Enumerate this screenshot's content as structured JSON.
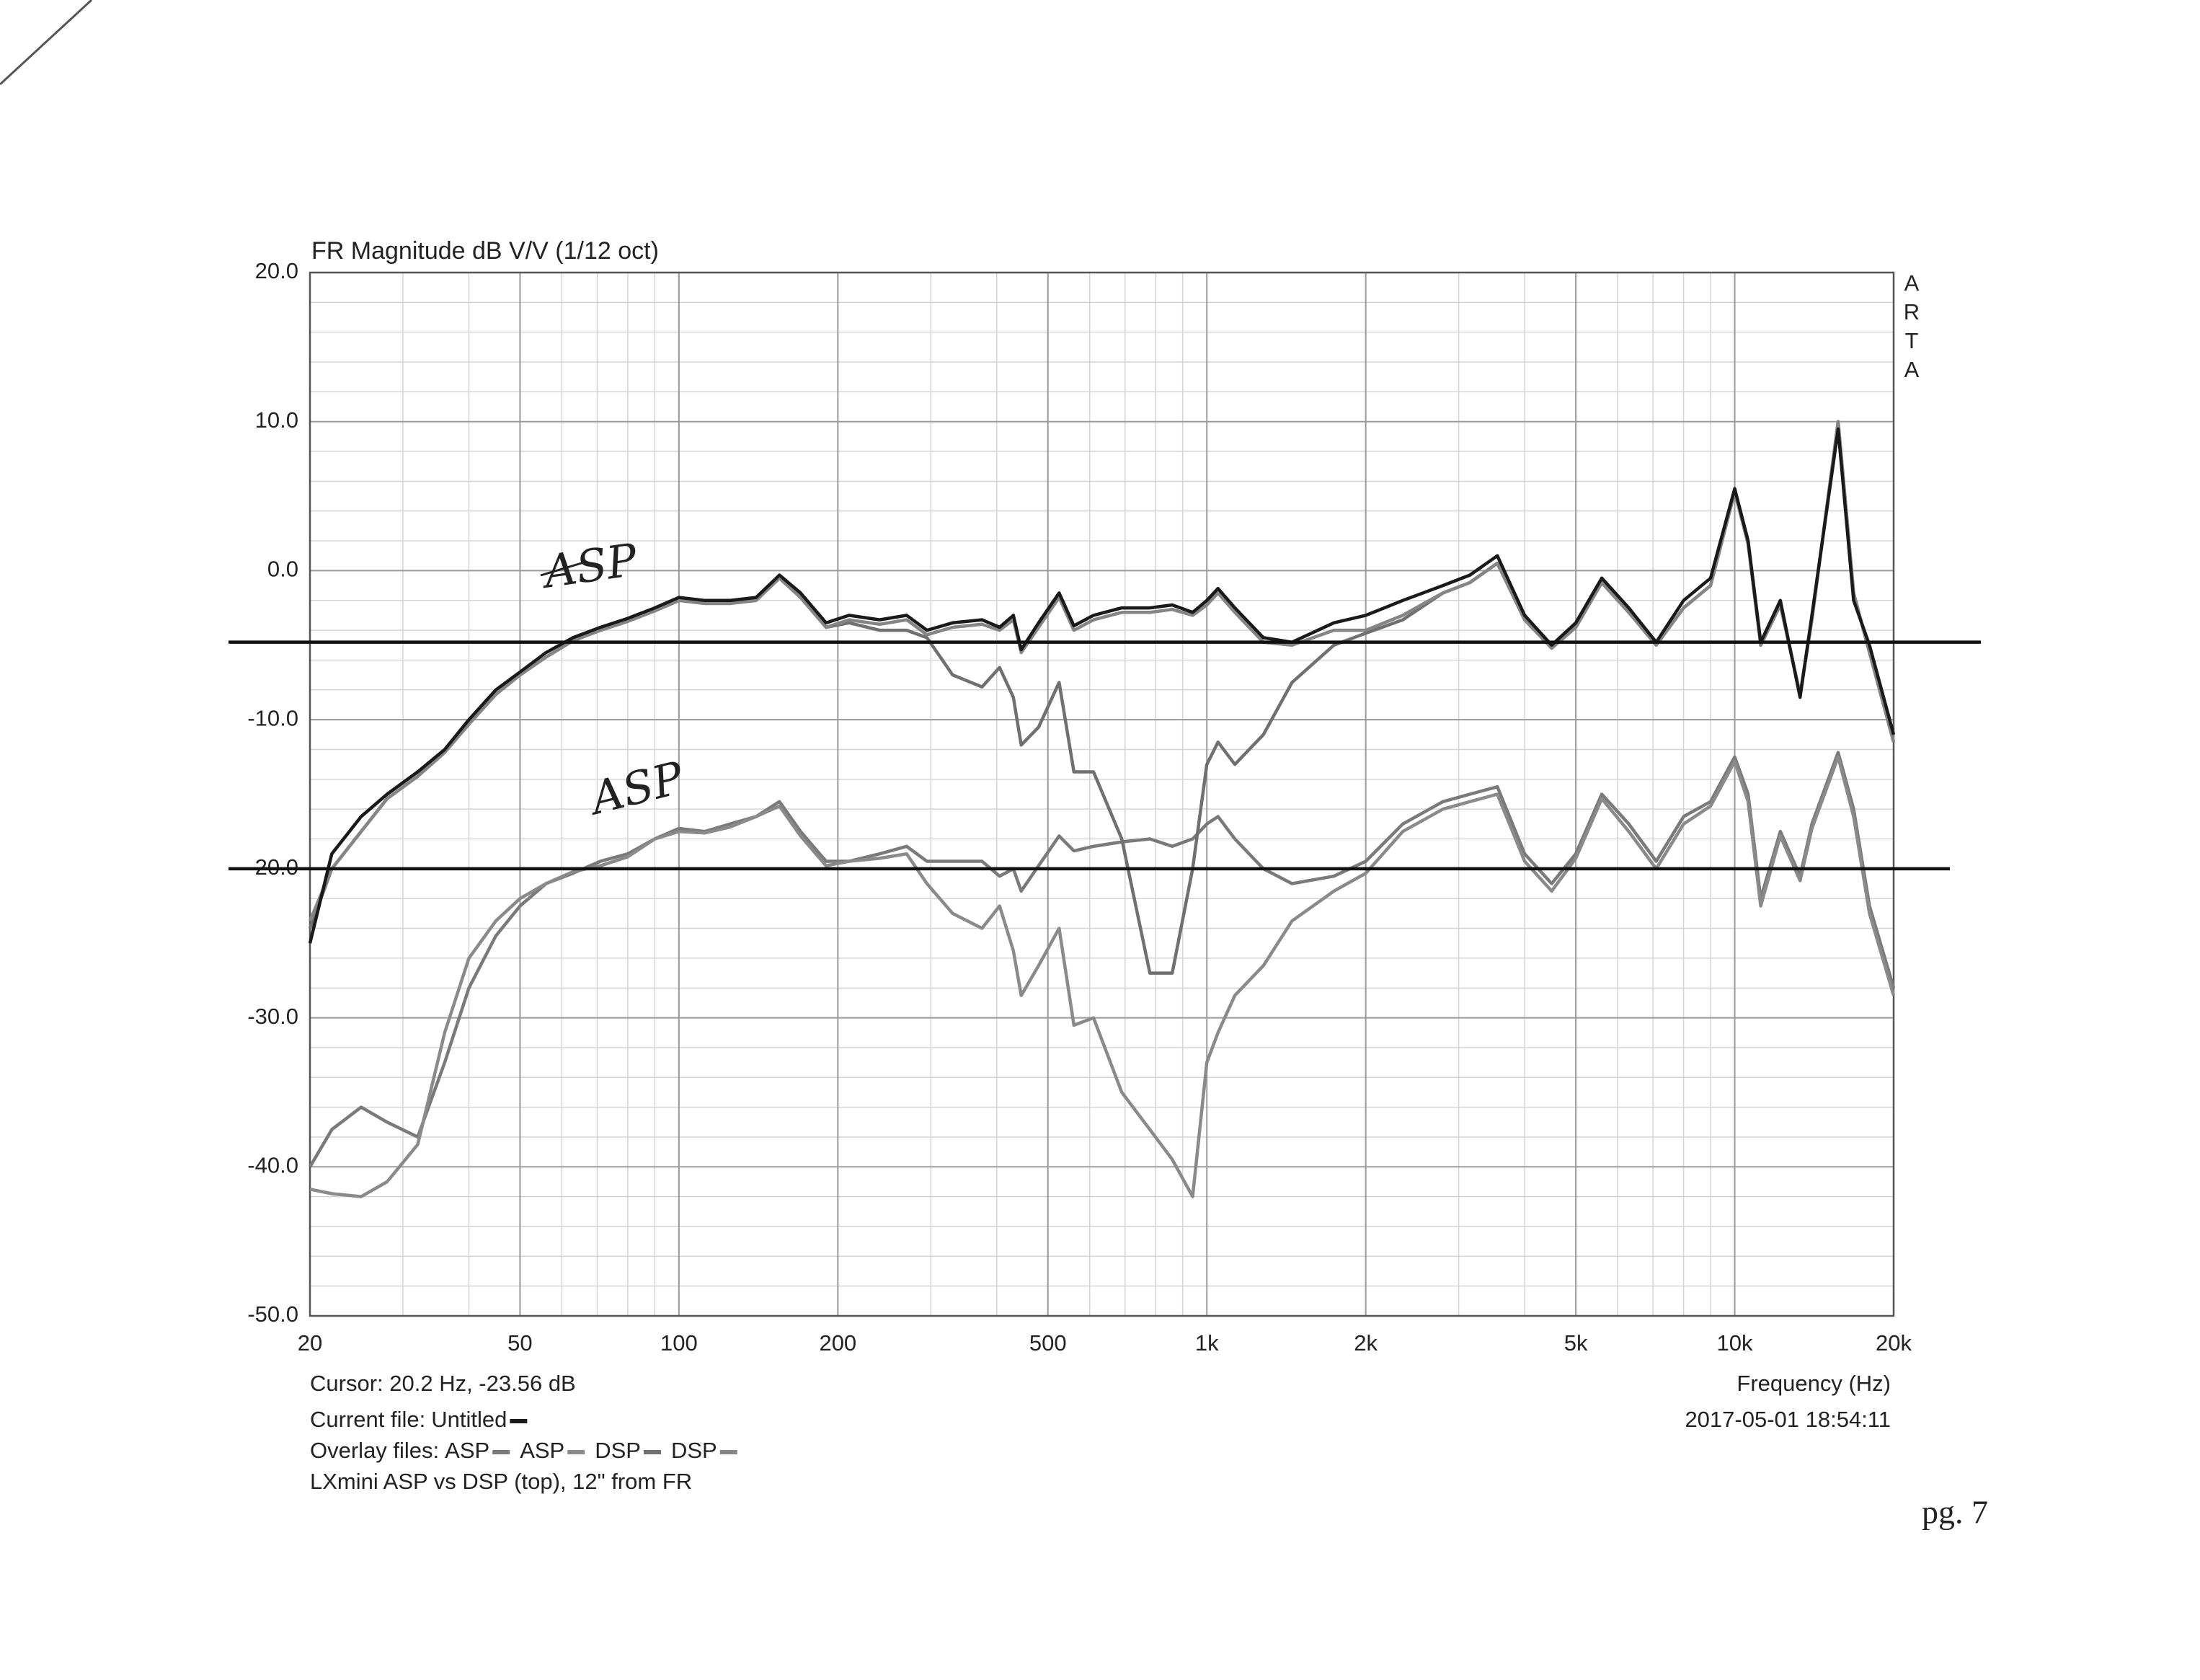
{
  "chart_data": {
    "type": "line",
    "title": "FR Magnitude dB V/V (1/12 oct)",
    "watermark": "ARTA",
    "xlabel": "Frequency (Hz)",
    "xscale": "log",
    "grid": true,
    "xlim": [
      20,
      20000
    ],
    "xticks": [
      20,
      50,
      100,
      200,
      500,
      {
        "value": 1000,
        "label": "1k"
      },
      {
        "value": 2000,
        "label": "2k"
      },
      {
        "value": 5000,
        "label": "5k"
      },
      {
        "value": 10000,
        "label": "10k"
      },
      {
        "value": 20000,
        "label": "20k"
      }
    ],
    "ylim": [
      -50,
      20
    ],
    "yticks": [
      {
        "value": -50,
        "label": "-50.0"
      },
      {
        "value": -40,
        "label": "-40.0"
      },
      {
        "value": -30,
        "label": "-30.0"
      },
      {
        "value": -20,
        "label": "-20.0"
      },
      {
        "value": -10,
        "label": "-10.0"
      },
      {
        "value": 0,
        "label": "0.0"
      },
      {
        "value": 10,
        "label": "10.0"
      },
      {
        "value": 20,
        "label": "20.0"
      }
    ],
    "x": [
      20,
      22,
      25,
      28,
      32,
      36,
      40,
      45,
      50,
      56,
      63,
      71,
      80,
      90,
      100,
      112,
      125,
      140,
      155,
      170,
      190,
      210,
      240,
      270,
      295,
      330,
      375,
      405,
      430,
      445,
      480,
      525,
      560,
      610,
      690,
      780,
      860,
      940,
      1000,
      1050,
      1130,
      1280,
      1450,
      1740,
      2000,
      2350,
      2800,
      3150,
      3550,
      4000,
      4500,
      5000,
      5600,
      6300,
      7100,
      8000,
      9000,
      10000,
      10600,
      11200,
      12200,
      13300,
      14000,
      15700,
      16800,
      18000,
      20000
    ],
    "series": [
      {
        "name": "Untitled",
        "color": "#1a1a1a",
        "values": [
          -25,
          -19,
          -16.5,
          -15,
          -13.5,
          -12,
          -10,
          -8,
          -6.8,
          -5.5,
          -4.5,
          -3.8,
          -3.2,
          -2.5,
          -1.8,
          -2,
          -2,
          -1.8,
          -0.3,
          -1.5,
          -3.5,
          -3,
          -3.3,
          -3,
          -4,
          -3.5,
          -3.3,
          -3.8,
          -3,
          -5.3,
          -3.5,
          -1.5,
          -3.7,
          -3,
          -2.5,
          -2.5,
          -2.3,
          -2.8,
          -2,
          -1.2,
          -2.5,
          -4.5,
          -4.8,
          -3.5,
          -3,
          -2,
          -1,
          -0.3,
          1,
          -3,
          -5,
          -3.5,
          -0.5,
          -2.5,
          -4.8,
          -2,
          -0.5,
          5.5,
          2,
          -4.8,
          -2,
          -8.5,
          -3,
          9.5,
          -2,
          -5,
          -11
        ]
      },
      {
        "name": "ASP",
        "color": "#7a7a7a",
        "values": [
          -40,
          -37.5,
          -36,
          -37,
          -38,
          -33,
          -28,
          -24.5,
          -22.5,
          -21,
          -20.3,
          -19.5,
          -19,
          -18,
          -17.3,
          -17.5,
          -17,
          -16.5,
          -15.5,
          -17.5,
          -19.5,
          -19.5,
          -19,
          -18.5,
          -19.5,
          -19.5,
          -19.5,
          -20.5,
          -20,
          -21.5,
          -19.8,
          -17.8,
          -18.8,
          -18.5,
          -18.2,
          -18,
          -18.5,
          -18,
          -17,
          -16.5,
          -18,
          -20,
          -21,
          -20.5,
          -19.5,
          -17,
          -15.5,
          -15,
          -14.5,
          -19,
          -21,
          -19,
          -15,
          -17,
          -19.5,
          -16.5,
          -15.5,
          -12.5,
          -15,
          -22,
          -17.5,
          -20.5,
          -17,
          -12.2,
          -16,
          -22.5,
          -28
        ]
      },
      {
        "name": "ASP",
        "color": "#8a8a8a",
        "values": [
          -41.5,
          -41.8,
          -42,
          -41,
          -38.5,
          -31,
          -26,
          -23.5,
          -22,
          -21,
          -20.2,
          -19.8,
          -19.2,
          -18,
          -17.5,
          -17.6,
          -17.2,
          -16.5,
          -15.8,
          -17.8,
          -19.8,
          -19.5,
          -19.3,
          -19,
          -21,
          -23,
          -24,
          -22.5,
          -25.5,
          -28.5,
          -26.5,
          -24,
          -30.5,
          -30,
          -35,
          -37.5,
          -39.5,
          -42,
          -33,
          -31,
          -28.5,
          -26.5,
          -23.5,
          -21.5,
          -20.3,
          -17.5,
          -16,
          -15.5,
          -15,
          -19.5,
          -21.5,
          -19.3,
          -15.3,
          -17.5,
          -20,
          -17,
          -15.8,
          -12.8,
          -15.5,
          -22.5,
          -17.8,
          -20.8,
          -17.3,
          -12.5,
          -16.5,
          -23,
          -28.5
        ]
      },
      {
        "name": "DSP",
        "color": "#707070",
        "values": [
          -24,
          -20,
          -17.5,
          -15.3,
          -13.8,
          -12.2,
          -10.3,
          -8.3,
          -7,
          -5.8,
          -4.7,
          -4,
          -3.4,
          -2.7,
          -2,
          -2.2,
          -2.2,
          -2,
          -0.5,
          -1.8,
          -3.8,
          -3.5,
          -4,
          -4,
          -4.5,
          -7,
          -7.8,
          -6.5,
          -8.5,
          -11.7,
          -10.5,
          -7.5,
          -13.5,
          -13.5,
          -18,
          -27,
          -27,
          -20,
          -13,
          -11.5,
          -13,
          -11,
          -7.5,
          -5,
          -4.2,
          -3.3,
          -1.5,
          -0.8,
          0.5,
          -3.3,
          -5.2,
          -3.8,
          -0.8,
          -2.8,
          -5,
          -2.5,
          -1,
          5.3,
          1.8,
          -5,
          -2.3,
          -8.3,
          -3.3,
          10,
          -1.5,
          -5.5,
          -11.5
        ]
      },
      {
        "name": "DSP",
        "color": "#858585",
        "values": [
          -23.5,
          -20,
          -17.5,
          -15.3,
          -13.8,
          -12.2,
          -10.3,
          -8.3,
          -7,
          -5.8,
          -4.7,
          -4,
          -3.4,
          -2.7,
          -2,
          -2.2,
          -2.2,
          -2,
          -0.5,
          -1.8,
          -3.8,
          -3.3,
          -3.6,
          -3.3,
          -4.3,
          -3.8,
          -3.6,
          -4,
          -3.3,
          -5.5,
          -3.8,
          -1.8,
          -4,
          -3.3,
          -2.8,
          -2.8,
          -2.6,
          -3,
          -2.3,
          -1.5,
          -2.8,
          -4.8,
          -5,
          -4,
          -4,
          -3,
          -1.5,
          -0.8,
          0.5,
          -3.3,
          -5.2,
          -3.8,
          -0.8,
          -2.8,
          -5,
          -2.5,
          -1,
          5.3,
          1.8,
          -5,
          -2.3,
          -8.3,
          -3.3,
          10,
          -1.5,
          -5.5,
          -11.5
        ]
      }
    ],
    "reference_lines": [
      -4.8,
      -20
    ],
    "handwritten_labels": [
      "ASP",
      "ASP"
    ],
    "cursor": "Cursor: 20.2 Hz, -23.56 dB",
    "current_file_label": "Current file:",
    "overlay_label": "Overlay files:",
    "description": "LXmini ASP vs DSP (top), 12\" from FR",
    "timestamp": "2017-05-01  18:54:11",
    "page_number": "pg. 7"
  }
}
